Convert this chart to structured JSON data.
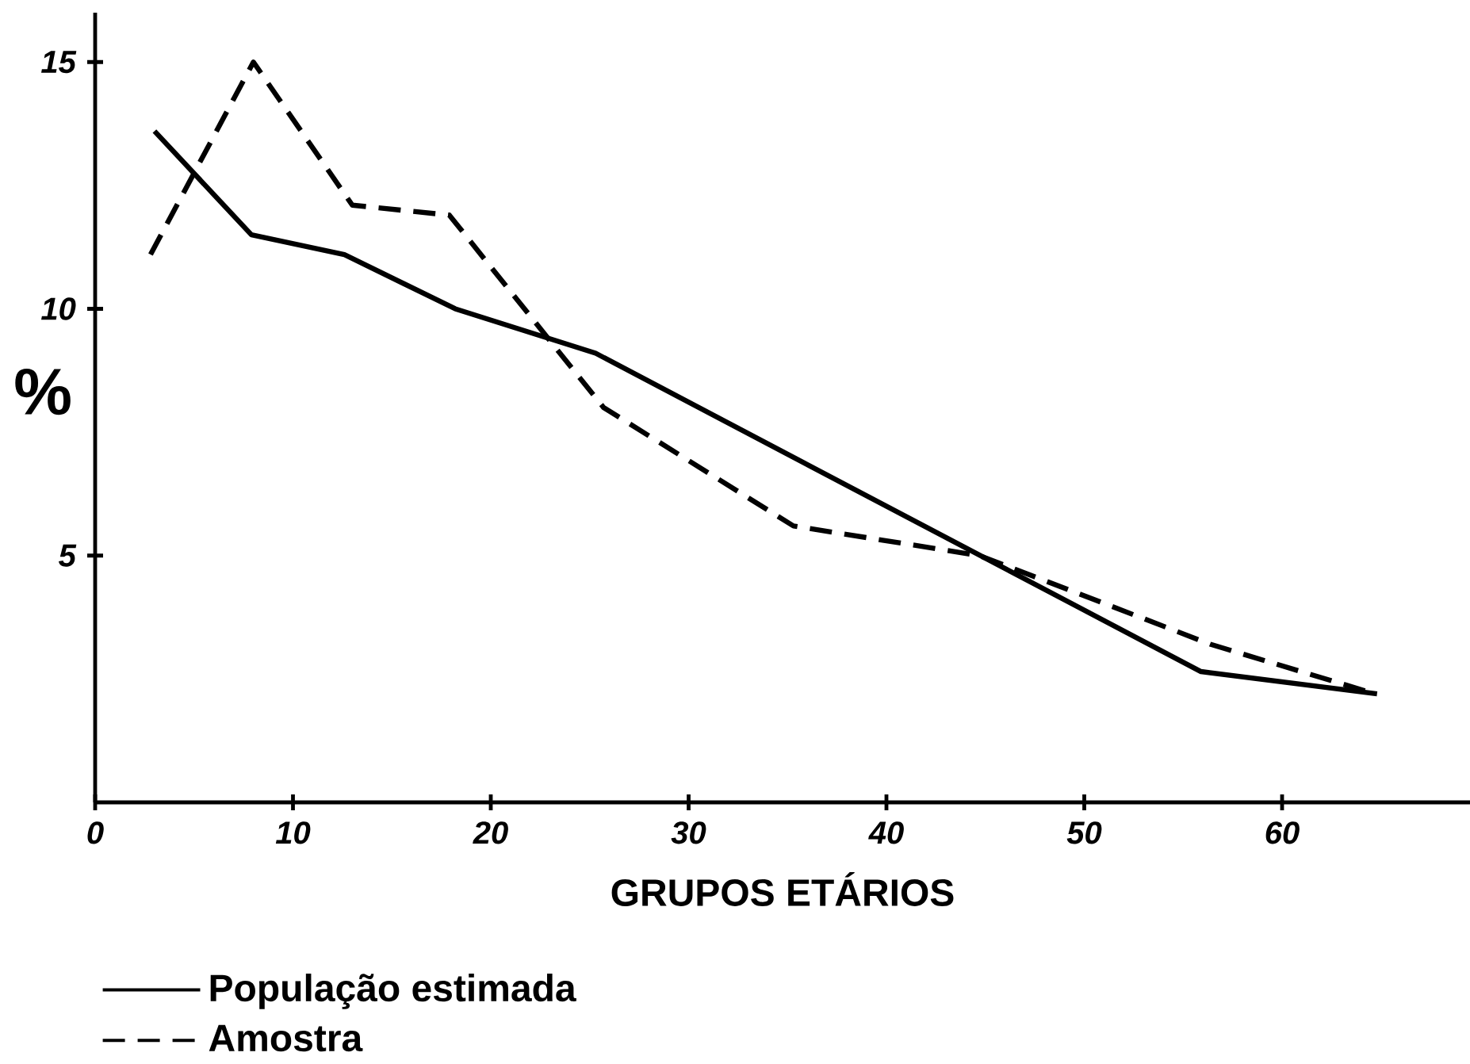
{
  "chart_data": {
    "type": "line",
    "xlabel": "GRUPOS ETÁRIOS",
    "ylabel": "%",
    "xlim": [
      0,
      69.5
    ],
    "ylim": [
      0,
      16
    ],
    "xticks": [
      0,
      10,
      20,
      30,
      40,
      50,
      60
    ],
    "yticks": [
      5,
      10,
      15
    ],
    "grid": false,
    "legend": "bottom left",
    "series": [
      {
        "name": "População estimada",
        "color": "#000000",
        "line_style": "solid",
        "x": [
          3.0,
          7.9,
          12.6,
          18.2,
          25.3,
          55.9,
          64.8
        ],
        "values": [
          13.6,
          11.5,
          11.1,
          10.0,
          9.1,
          2.65,
          2.2
        ]
      },
      {
        "name": "Amostra",
        "color": "#000000",
        "line_style": "dashed",
        "x": [
          2.8,
          8.0,
          13.0,
          17.9,
          25.7,
          35.3,
          44.7,
          56.4,
          64.7
        ],
        "values": [
          11.1,
          15.0,
          12.1,
          11.9,
          8.0,
          5.6,
          5.0,
          3.2,
          2.2
        ]
      }
    ]
  }
}
